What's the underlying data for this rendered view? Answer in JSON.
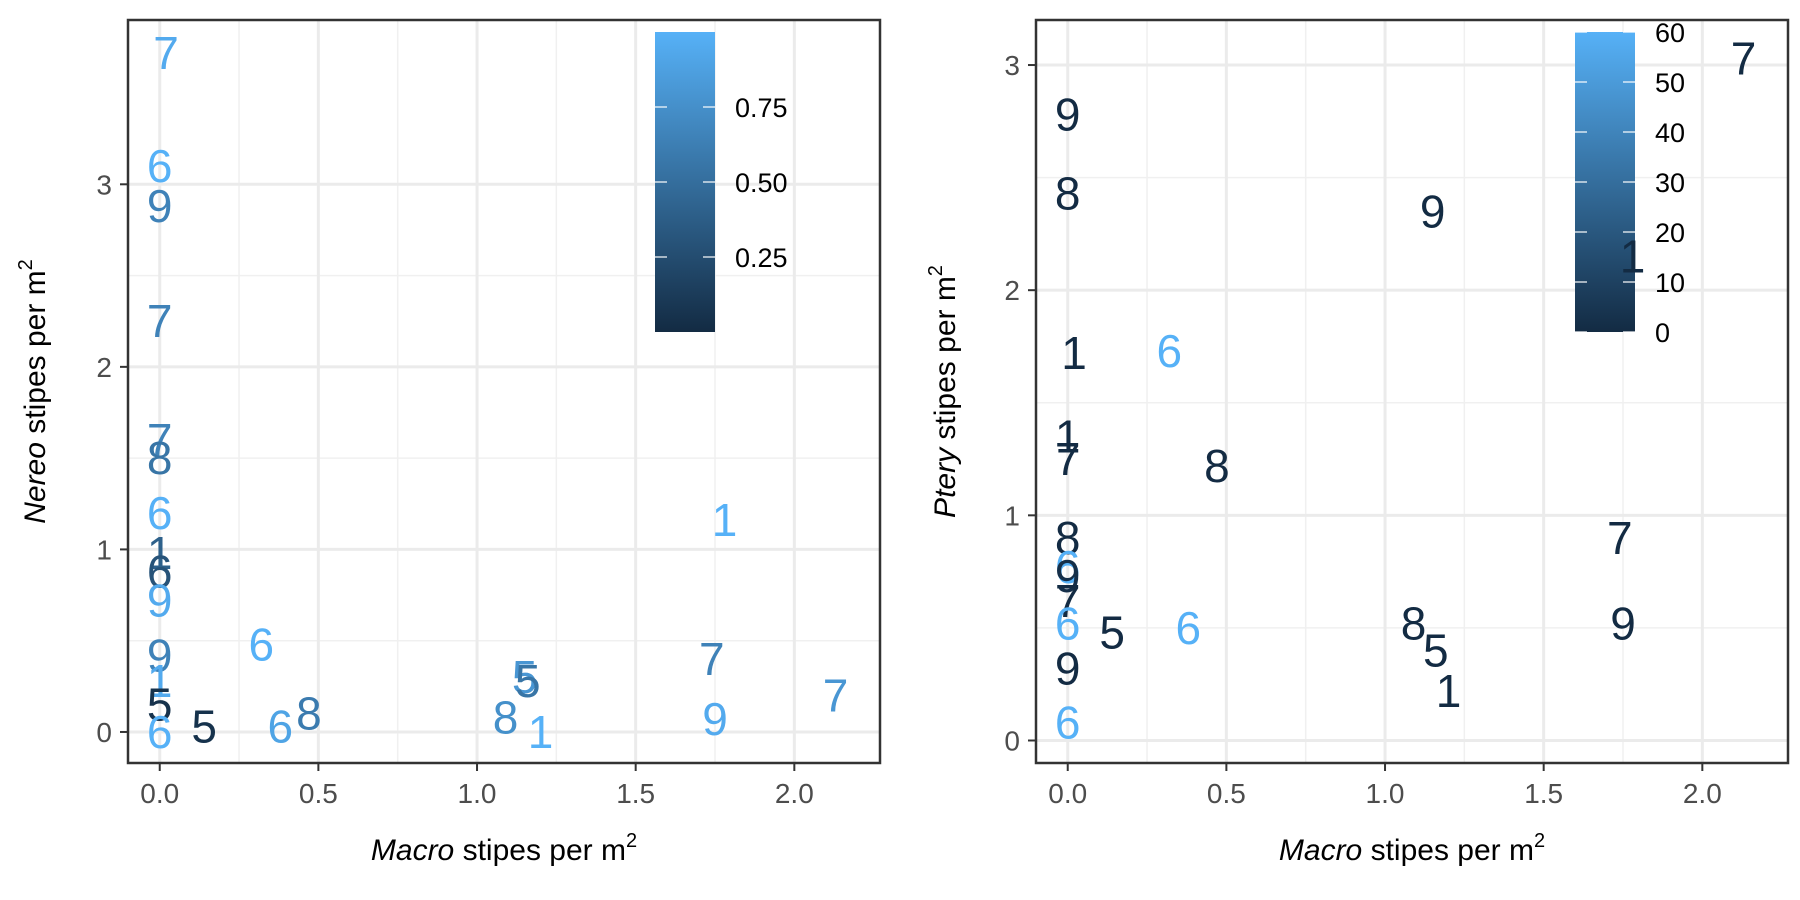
{
  "chart_data": [
    {
      "type": "scatter",
      "marker": "text",
      "xlabel": {
        "italic": "Macro",
        "rest": " stipes per m",
        "sup": "2"
      },
      "ylabel": {
        "italic": "Nereo",
        "rest": " stipes per m",
        "sup": "2"
      },
      "xlim": [
        -0.1,
        2.27
      ],
      "ylim": [
        -0.17,
        3.9
      ],
      "xticks": [
        0.0,
        0.5,
        1.0,
        1.5,
        2.0
      ],
      "xtick_labels": [
        "0.0",
        "0.5",
        "1.0",
        "1.5",
        "2.0"
      ],
      "yticks": [
        0,
        1,
        2,
        3
      ],
      "ytick_labels": [
        "0",
        "1",
        "2",
        "3"
      ],
      "grid": true,
      "legend": {
        "position": "top-right-inside",
        "type": "colorbar",
        "range": [
          0,
          1
        ],
        "ticks": [
          0.25,
          0.5,
          0.75
        ],
        "tick_labels": [
          "0.25",
          "0.50",
          "0.75"
        ],
        "colors": [
          "#132b43",
          "#56b1f7"
        ]
      },
      "points": [
        {
          "x": 0.02,
          "y": 3.72,
          "label": "7",
          "c": 0.95
        },
        {
          "x": 0.0,
          "y": 3.1,
          "label": "6",
          "c": 1.0
        },
        {
          "x": 0.0,
          "y": 2.88,
          "label": "9",
          "c": 0.65
        },
        {
          "x": 0.0,
          "y": 2.25,
          "label": "7",
          "c": 0.65
        },
        {
          "x": 0.0,
          "y": 1.6,
          "label": "7",
          "c": 0.65
        },
        {
          "x": 0.0,
          "y": 1.5,
          "label": "8",
          "c": 0.55
        },
        {
          "x": 0.0,
          "y": 1.2,
          "label": "6",
          "c": 1.0
        },
        {
          "x": 0.0,
          "y": 0.98,
          "label": "1",
          "c": 0.4
        },
        {
          "x": 0.0,
          "y": 0.88,
          "label": "6",
          "c": 0.3
        },
        {
          "x": 0.0,
          "y": 0.72,
          "label": "9",
          "c": 0.95
        },
        {
          "x": 0.0,
          "y": 0.42,
          "label": "9",
          "c": 0.65
        },
        {
          "x": 0.0,
          "y": 0.28,
          "label": "1",
          "c": 0.95
        },
        {
          "x": 0.0,
          "y": 0.15,
          "label": "5",
          "c": 0.05
        },
        {
          "x": 0.0,
          "y": 0.0,
          "label": "6",
          "c": 1.0
        },
        {
          "x": 0.14,
          "y": 0.03,
          "label": "5",
          "c": 0.05
        },
        {
          "x": 0.32,
          "y": 0.48,
          "label": "6",
          "c": 1.0
        },
        {
          "x": 0.38,
          "y": 0.03,
          "label": "6",
          "c": 0.9
        },
        {
          "x": 0.47,
          "y": 0.1,
          "label": "8",
          "c": 0.6
        },
        {
          "x": 1.09,
          "y": 0.08,
          "label": "8",
          "c": 0.75
        },
        {
          "x": 1.15,
          "y": 0.3,
          "label": "5",
          "c": 0.8
        },
        {
          "x": 1.16,
          "y": 0.28,
          "label": "5",
          "c": 0.55
        },
        {
          "x": 1.2,
          "y": 0.0,
          "label": "1",
          "c": 1.0
        },
        {
          "x": 1.74,
          "y": 0.4,
          "label": "7",
          "c": 0.65
        },
        {
          "x": 1.75,
          "y": 0.07,
          "label": "9",
          "c": 0.95
        },
        {
          "x": 1.78,
          "y": 1.16,
          "label": "1",
          "c": 1.0
        },
        {
          "x": 2.13,
          "y": 0.2,
          "label": "7",
          "c": 0.8
        }
      ]
    },
    {
      "type": "scatter",
      "marker": "text",
      "xlabel": {
        "italic": "Macro",
        "rest": " stipes per m",
        "sup": "2"
      },
      "ylabel": {
        "italic": "Ptery",
        "rest": " stipes per m",
        "sup": "2"
      },
      "xlim": [
        -0.1,
        2.27
      ],
      "ylim": [
        -0.1,
        3.2
      ],
      "xticks": [
        0.0,
        0.5,
        1.0,
        1.5,
        2.0
      ],
      "xtick_labels": [
        "0.0",
        "0.5",
        "1.0",
        "1.5",
        "2.0"
      ],
      "yticks": [
        0,
        1,
        2,
        3
      ],
      "ytick_labels": [
        "0",
        "1",
        "2",
        "3"
      ],
      "grid": true,
      "legend": {
        "position": "top-right-inside",
        "type": "colorbar",
        "range": [
          0,
          60
        ],
        "ticks": [
          0,
          10,
          20,
          30,
          40,
          50,
          60
        ],
        "tick_labels": [
          "0",
          "10",
          "20",
          "30",
          "40",
          "50",
          "60"
        ],
        "colors": [
          "#132b43",
          "#56b1f7"
        ]
      },
      "points": [
        {
          "x": 0.0,
          "y": 2.78,
          "label": "9",
          "c": 0.0
        },
        {
          "x": 0.0,
          "y": 2.43,
          "label": "8",
          "c": 0.0
        },
        {
          "x": 1.15,
          "y": 2.35,
          "label": "9",
          "c": 0.0
        },
        {
          "x": 2.13,
          "y": 3.03,
          "label": "7",
          "c": 0.0
        },
        {
          "x": 1.78,
          "y": 2.15,
          "label": "1",
          "c": 0.0
        },
        {
          "x": 0.02,
          "y": 1.72,
          "label": "1",
          "c": 0.0
        },
        {
          "x": 0.32,
          "y": 1.73,
          "label": "6",
          "c": 60.0
        },
        {
          "x": 0.0,
          "y": 1.35,
          "label": "1",
          "c": 0.0
        },
        {
          "x": 0.0,
          "y": 1.25,
          "label": "7",
          "c": 0.0
        },
        {
          "x": 0.47,
          "y": 1.22,
          "label": "8",
          "c": 0.0
        },
        {
          "x": 0.0,
          "y": 0.9,
          "label": "8",
          "c": 0.0
        },
        {
          "x": 0.0,
          "y": 0.77,
          "label": "6",
          "c": 60.0
        },
        {
          "x": 0.0,
          "y": 0.73,
          "label": "9",
          "c": 2.0
        },
        {
          "x": 0.0,
          "y": 0.62,
          "label": "7",
          "c": 0.0
        },
        {
          "x": 0.0,
          "y": 0.52,
          "label": "6",
          "c": 60.0
        },
        {
          "x": 0.14,
          "y": 0.48,
          "label": "5",
          "c": 0.0
        },
        {
          "x": 0.38,
          "y": 0.5,
          "label": "6",
          "c": 60.0
        },
        {
          "x": 0.0,
          "y": 0.32,
          "label": "9",
          "c": 0.0
        },
        {
          "x": 0.0,
          "y": 0.08,
          "label": "6",
          "c": 60.0
        },
        {
          "x": 1.09,
          "y": 0.52,
          "label": "8",
          "c": 0.0
        },
        {
          "x": 1.16,
          "y": 0.4,
          "label": "5",
          "c": 0.0
        },
        {
          "x": 1.2,
          "y": 0.22,
          "label": "1",
          "c": 0.0
        },
        {
          "x": 1.74,
          "y": 0.9,
          "label": "7",
          "c": 0.0
        },
        {
          "x": 1.75,
          "y": 0.52,
          "label": "9",
          "c": 0.0
        }
      ]
    }
  ]
}
